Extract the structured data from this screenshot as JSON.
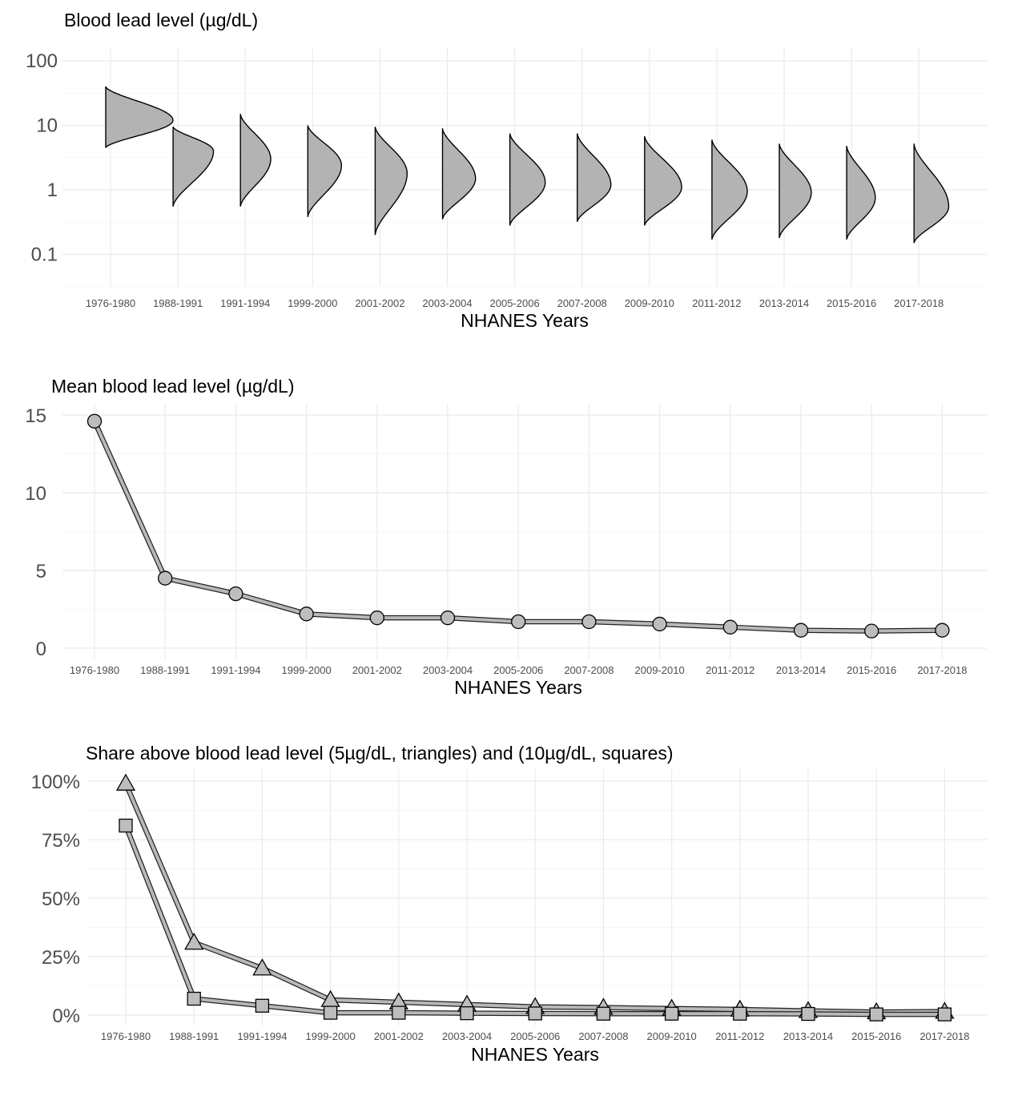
{
  "chart_data": [
    {
      "type": "violin",
      "title": "Blood lead level (µg/dL)",
      "xlabel": "NHANES Years",
      "ylabel": "",
      "y_scale": "log10",
      "ylim": [
        0.03,
        110
      ],
      "yticks": [
        0.1,
        1,
        10,
        100
      ],
      "ytick_labels": [
        "0.1",
        "1",
        "10",
        "100"
      ],
      "categories": [
        "1976-1980",
        "1988-1991",
        "1991-1994",
        "1999-2000",
        "2001-2002",
        "2003-2004",
        "2005-2006",
        "2007-2008",
        "2009-2010",
        "2011-2012",
        "2013-2014",
        "2015-2016",
        "2017-2018"
      ],
      "distributions": [
        {
          "min": 4.5,
          "max": 40,
          "mode": 12,
          "relative_peak_density": 2.0
        },
        {
          "min": 0.55,
          "max": 9.5,
          "mode": 4.0,
          "relative_peak_density": 1.2
        },
        {
          "min": 0.55,
          "max": 15,
          "mode": 3.0,
          "relative_peak_density": 0.9
        },
        {
          "min": 0.38,
          "max": 10,
          "mode": 2.4,
          "relative_peak_density": 1.0
        },
        {
          "min": 0.2,
          "max": 9.5,
          "mode": 1.8,
          "relative_peak_density": 0.95
        },
        {
          "min": 0.35,
          "max": 9.0,
          "mode": 1.5,
          "relative_peak_density": 0.98
        },
        {
          "min": 0.28,
          "max": 7.5,
          "mode": 1.3,
          "relative_peak_density": 1.05
        },
        {
          "min": 0.32,
          "max": 7.5,
          "mode": 1.2,
          "relative_peak_density": 1.0
        },
        {
          "min": 0.28,
          "max": 6.8,
          "mode": 1.1,
          "relative_peak_density": 1.1
        },
        {
          "min": 0.17,
          "max": 6.0,
          "mode": 0.95,
          "relative_peak_density": 1.05
        },
        {
          "min": 0.18,
          "max": 5.2,
          "mode": 0.9,
          "relative_peak_density": 0.95
        },
        {
          "min": 0.17,
          "max": 4.8,
          "mode": 0.75,
          "relative_peak_density": 0.85
        },
        {
          "min": 0.15,
          "max": 5.2,
          "mode": 0.55,
          "relative_peak_density": 1.03
        }
      ],
      "fill_color": "#b3b3b3",
      "line_color": "#000000",
      "grid": true
    },
    {
      "type": "line",
      "title": "Mean blood lead level (µg/dL)",
      "xlabel": "NHANES Years",
      "ylabel": "",
      "ylim": [
        0,
        15
      ],
      "yticks": [
        0,
        5,
        10,
        15
      ],
      "ytick_labels": [
        "0",
        "5",
        "10",
        "15"
      ],
      "categories": [
        "1976-1980",
        "1988-1991",
        "1991-1994",
        "1999-2000",
        "2001-2002",
        "2003-2004",
        "2005-2006",
        "2007-2008",
        "2009-2010",
        "2011-2012",
        "2013-2014",
        "2015-2016",
        "2017-2018"
      ],
      "series": [
        {
          "values": [
            14.6,
            4.5,
            3.5,
            2.2,
            1.95,
            1.95,
            1.7,
            1.7,
            1.55,
            1.35,
            1.15,
            1.1,
            1.15
          ],
          "marker": "circle"
        }
      ],
      "marker_fill": "#bdbdbd",
      "grid": true
    },
    {
      "type": "line",
      "title": "Share above blood lead level (5µg/dL, triangles) and (10µg/dL, squares)",
      "xlabel": "NHANES Years",
      "ylabel": "",
      "ylim": [
        0,
        1
      ],
      "yticks": [
        0,
        0.25,
        0.5,
        0.75,
        1.0
      ],
      "ytick_labels": [
        "0%",
        "25%",
        "50%",
        "75%",
        "100%"
      ],
      "categories": [
        "1976-1980",
        "1988-1991",
        "1991-1994",
        "1999-2000",
        "2001-2002",
        "2003-2004",
        "2005-2006",
        "2007-2008",
        "2009-2010",
        "2011-2012",
        "2013-2014",
        "2015-2016",
        "2017-2018"
      ],
      "series": [
        {
          "values": [
            0.99,
            0.31,
            0.2,
            0.065,
            0.055,
            0.045,
            0.035,
            0.032,
            0.028,
            0.024,
            0.018,
            0.013,
            0.015
          ],
          "marker": "triangle"
        },
        {
          "values": [
            0.81,
            0.07,
            0.04,
            0.01,
            0.01,
            0.008,
            0.007,
            0.006,
            0.006,
            0.006,
            0.005,
            0.003,
            0.003
          ],
          "marker": "square"
        }
      ],
      "marker_fill": "#bdbdbd",
      "grid": true
    }
  ]
}
